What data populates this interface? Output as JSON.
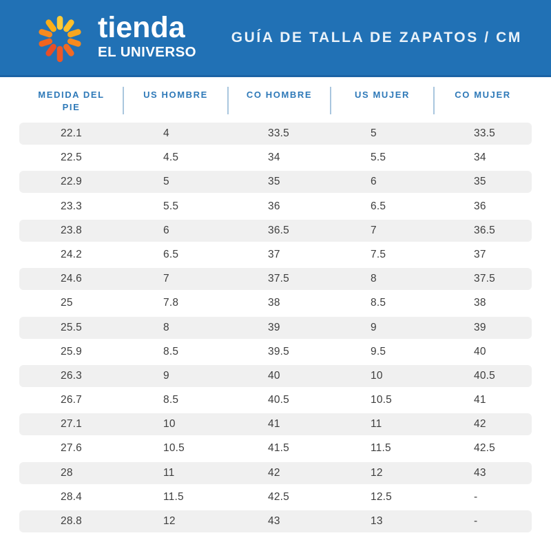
{
  "banner": {
    "brand_top": "tienda",
    "brand_bottom": "EL UNIVERSO",
    "title": "GUÍA DE TALLA DE ZAPATOS  /  CM",
    "logo": {
      "icon": "sunburst-icon",
      "petal_colors": [
        "#FFCB38",
        "#FFC02B",
        "#F9A61F",
        "#F68A1F",
        "#F16A24",
        "#EC5726",
        "#E64E28",
        "#F0641F",
        "#F68A1F",
        "#FCAE17"
      ]
    }
  },
  "colors": {
    "banner_blue": "#2171B5",
    "banner_edge": "#1B63A5",
    "header_text": "#2E79B8",
    "divider": "#A9C6DE",
    "row_gray": "#F0F0F0",
    "cell_text": "#3D3D3D",
    "title_text": "#EAF2F9"
  },
  "table": {
    "columns": [
      "MEDIDA DEL PIE",
      "US HOMBRE",
      "CO HOMBRE",
      "US MUJER",
      "CO MUJER"
    ],
    "rows": [
      [
        "22.1",
        "4",
        "33.5",
        "5",
        "33.5"
      ],
      [
        "22.5",
        "4.5",
        "34",
        "5.5",
        "34"
      ],
      [
        "22.9",
        "5",
        "35",
        "6",
        "35"
      ],
      [
        "23.3",
        "5.5",
        "36",
        "6.5",
        "36"
      ],
      [
        "23.8",
        "6",
        "36.5",
        "7",
        "36.5"
      ],
      [
        "24.2",
        "6.5",
        "37",
        "7.5",
        "37"
      ],
      [
        "24.6",
        "7",
        "37.5",
        "8",
        "37.5"
      ],
      [
        "25",
        "7.8",
        "38",
        "8.5",
        "38"
      ],
      [
        "25.5",
        "8",
        "39",
        "9",
        "39"
      ],
      [
        "25.9",
        "8.5",
        "39.5",
        "9.5",
        "40"
      ],
      [
        "26.3",
        "9",
        "40",
        "10",
        "40.5"
      ],
      [
        "26.7",
        "8.5",
        "40.5",
        "10.5",
        "41"
      ],
      [
        "27.1",
        "10",
        "41",
        "11",
        "42"
      ],
      [
        "27.6",
        "10.5",
        "41.5",
        "11.5",
        "42.5"
      ],
      [
        "28",
        "11",
        "42",
        "12",
        "43"
      ],
      [
        "28.4",
        "11.5",
        "42.5",
        "12.5",
        "-"
      ],
      [
        "28.8",
        "12",
        "43",
        "13",
        "-"
      ]
    ]
  }
}
